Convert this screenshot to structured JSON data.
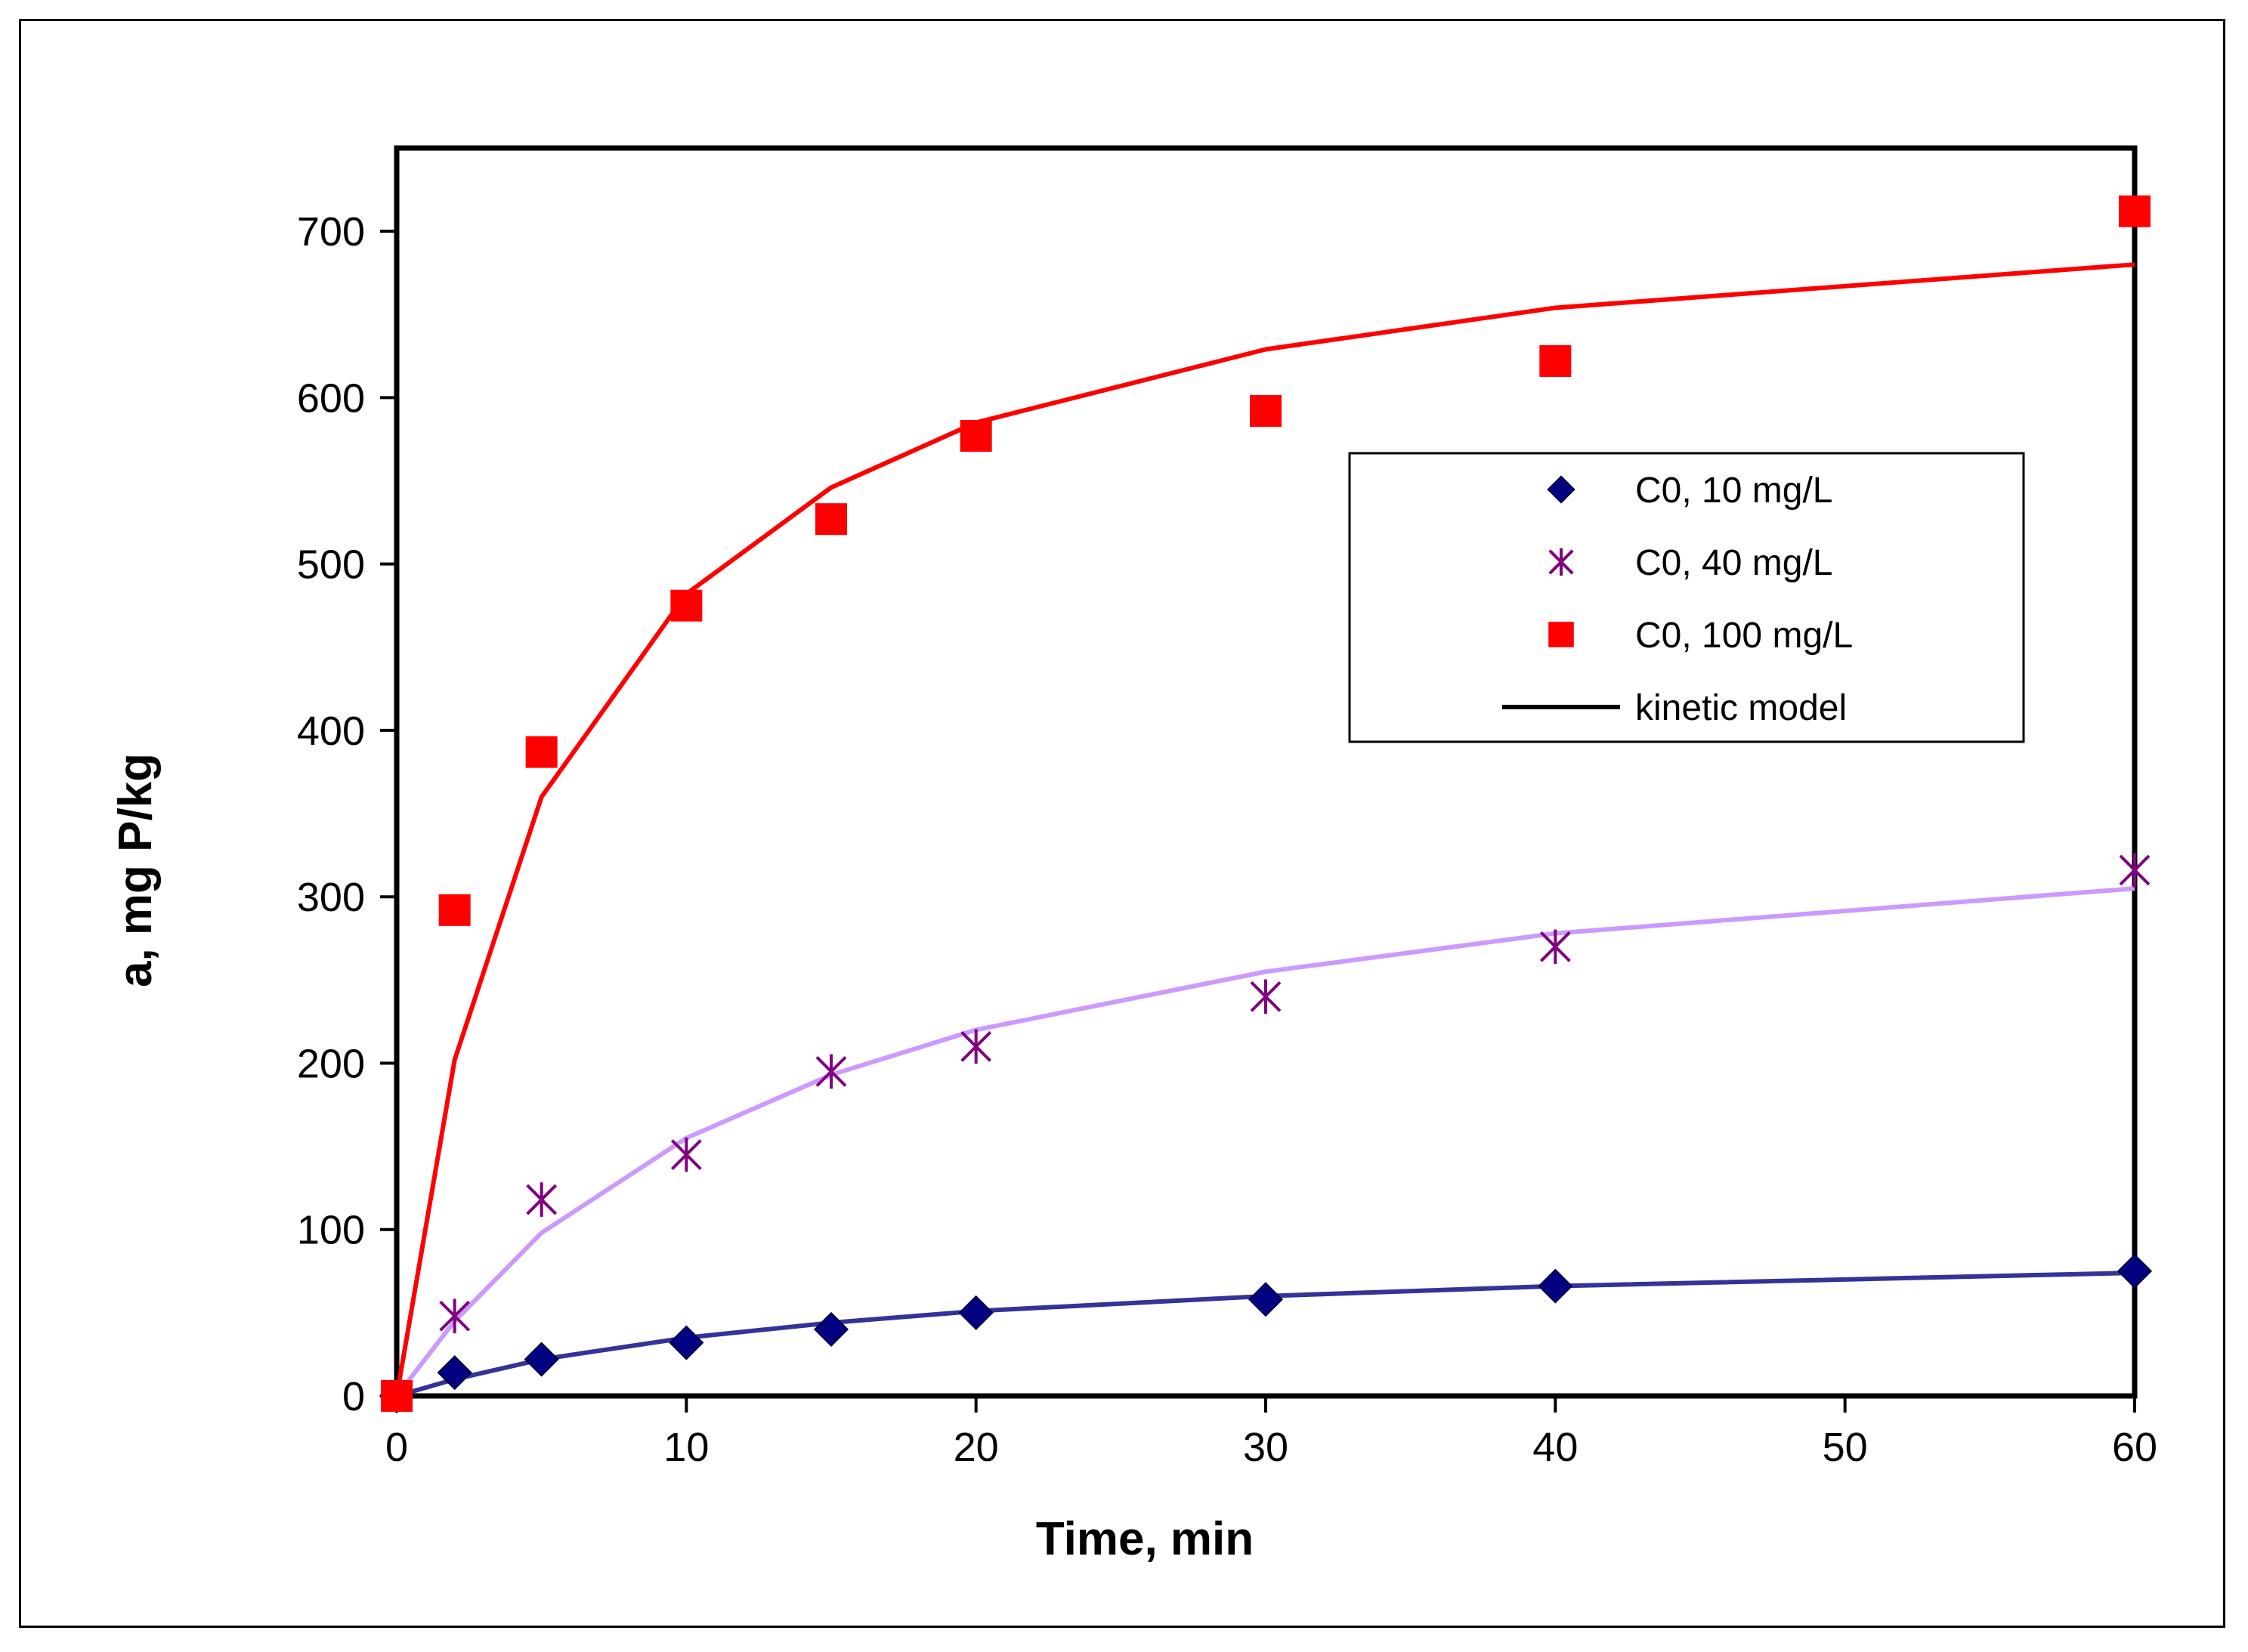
{
  "chart_data": {
    "type": "scatter",
    "title": "",
    "xlabel": "Time, min",
    "ylabel": "a, mg P/kg",
    "xlim": [
      0,
      60
    ],
    "ylim": [
      0,
      750
    ],
    "xticks": [
      0,
      10,
      20,
      30,
      40,
      50,
      60
    ],
    "yticks": [
      0,
      100,
      200,
      300,
      400,
      500,
      600,
      700
    ],
    "grid": false,
    "legend_position": "upper-right",
    "series": [
      {
        "name": "C0, 10 mg/L",
        "marker": "diamond",
        "color": "#000080",
        "x": [
          0,
          2,
          5,
          10,
          15,
          20,
          30,
          40,
          60
        ],
        "y": [
          0,
          14,
          22,
          32,
          40,
          50,
          58,
          66,
          75
        ],
        "model_x": [
          0,
          2,
          5,
          10,
          15,
          20,
          30,
          40,
          60
        ],
        "model_y": [
          0,
          10,
          22,
          35,
          44,
          51,
          60,
          66,
          74
        ],
        "model_color": "#333399"
      },
      {
        "name": "C0, 40 mg/L",
        "marker": "asterisk",
        "color": "#800080",
        "x": [
          2,
          5,
          10,
          15,
          20,
          30,
          40,
          60
        ],
        "y": [
          48,
          118,
          145,
          195,
          210,
          240,
          270,
          316
        ],
        "model_x": [
          0,
          2,
          5,
          10,
          15,
          20,
          30,
          40,
          60
        ],
        "model_y": [
          0,
          45,
          98,
          155,
          193,
          220,
          255,
          278,
          305
        ],
        "model_color": "#CC99FF"
      },
      {
        "name": "C0, 100 mg/L",
        "marker": "square",
        "color": "#FF0000",
        "x": [
          0,
          2,
          5,
          10,
          15,
          20,
          30,
          40,
          60
        ],
        "y": [
          0,
          292,
          387,
          475,
          527,
          577,
          592,
          622,
          712
        ],
        "model_x": [
          0,
          2,
          5,
          10,
          15,
          20,
          30,
          40,
          60
        ],
        "model_y": [
          0,
          202,
          360,
          482,
          546,
          585,
          629,
          654,
          680
        ],
        "model_color": "#FF0000"
      }
    ],
    "legend": [
      {
        "label": "C0, 10 mg/L",
        "symbol": "diamond",
        "color": "#000080"
      },
      {
        "label": "C0, 40 mg/L",
        "symbol": "asterisk",
        "color": "#800080"
      },
      {
        "label": "C0, 100 mg/L",
        "symbol": "square",
        "color": "#FF0000"
      },
      {
        "label": "kinetic model",
        "symbol": "line",
        "color": "#000000"
      }
    ]
  }
}
